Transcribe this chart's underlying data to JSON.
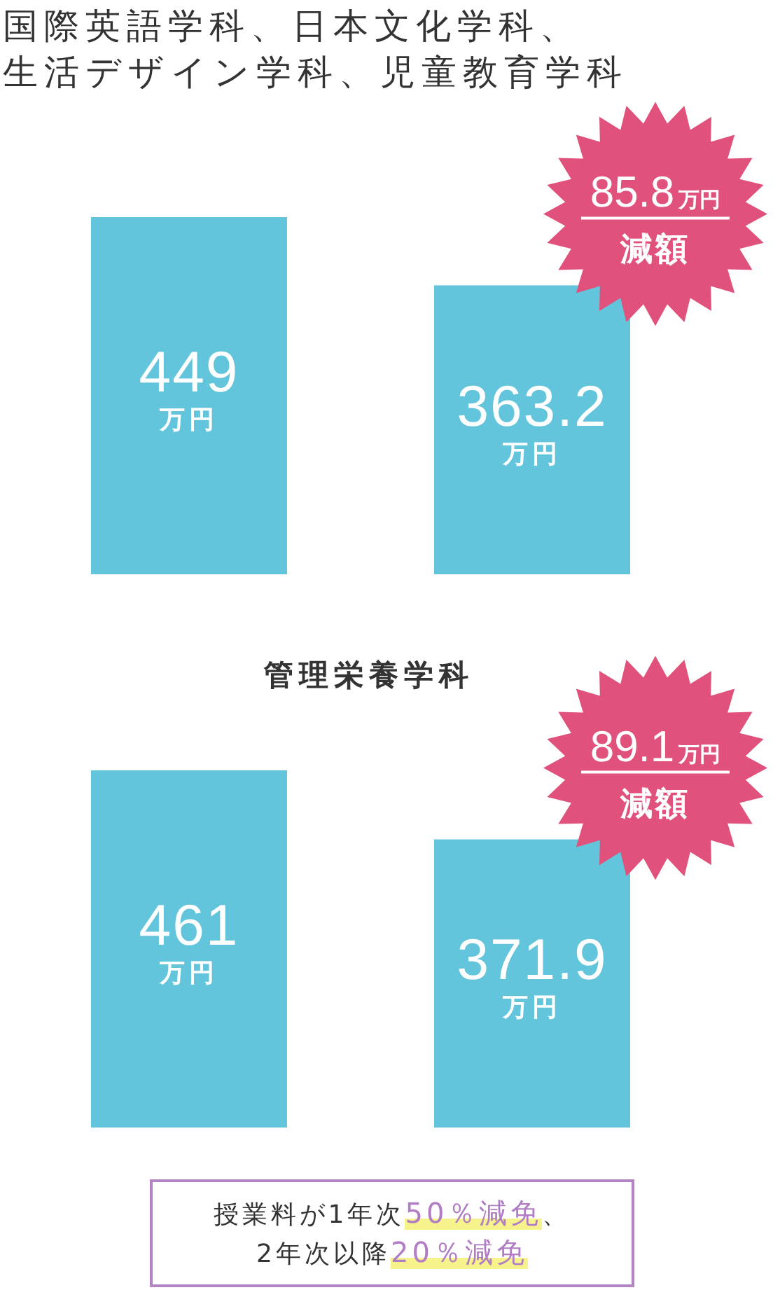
{
  "chart_data": [
    {
      "type": "bar",
      "title": "国際英語学科、日本文化学科、生活デザイン学科、児童教育学科",
      "categories": [
        null,
        null
      ],
      "values": [
        449,
        363.2
      ],
      "value_labels": [
        "449万円",
        "363.2万円"
      ],
      "color": "#63c5db",
      "annotations": [
        "85.8万円",
        "減額"
      ]
    },
    {
      "type": "bar",
      "title": "管理栄養学科",
      "categories": [
        null,
        null
      ],
      "values": [
        461,
        371.9
      ],
      "value_labels": [
        "461万円",
        "371.9万円"
      ],
      "color": "#63c5db",
      "annotations": [
        "89.1万円",
        "減額"
      ]
    },
    {
      "type": "other",
      "annotations": [
        "授業料が1年次50％減免、",
        "2年次以降20％減免"
      ]
    }
  ]
}
